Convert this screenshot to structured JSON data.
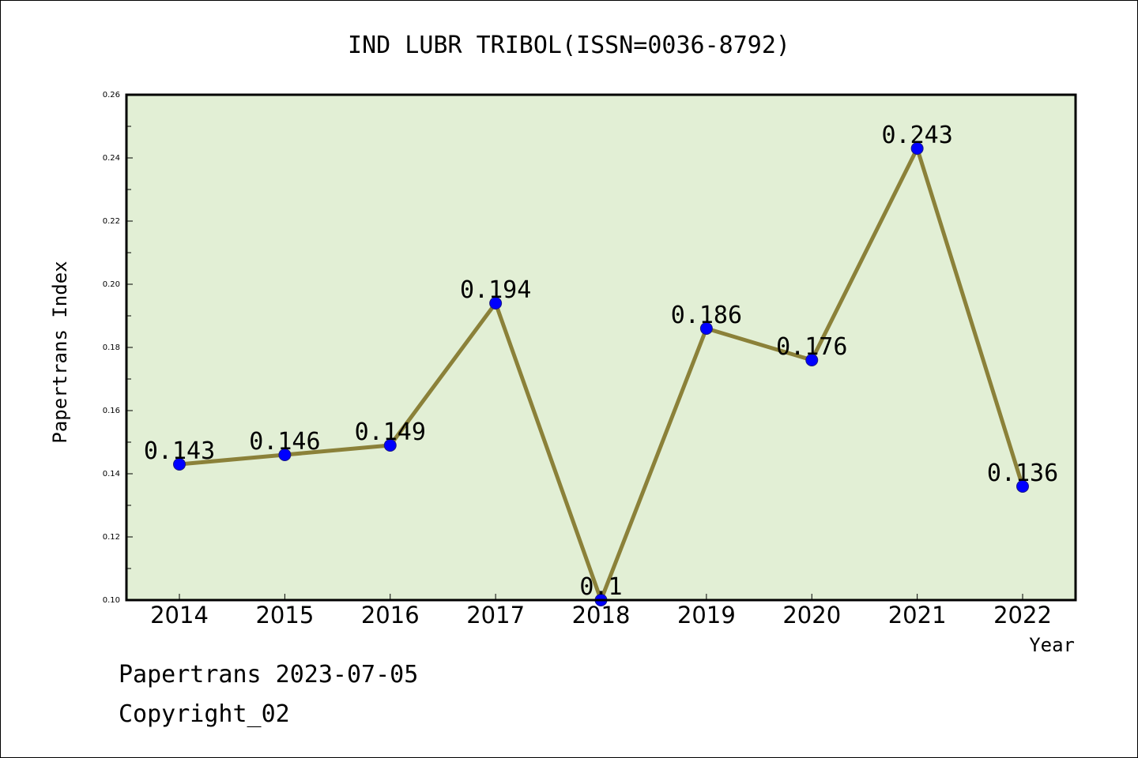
{
  "chart_data": {
    "type": "line",
    "title": "IND LUBR TRIBOL(ISSN=0036-8792)",
    "xlabel": "Year",
    "ylabel": "Papertrans Index",
    "x": [
      "2014",
      "2015",
      "2016",
      "2017",
      "2018",
      "2019",
      "2020",
      "2021",
      "2022"
    ],
    "series": [
      {
        "values": [
          0.143,
          0.146,
          0.149,
          0.194,
          0.1,
          0.186,
          0.176,
          0.243,
          0.136
        ],
        "labels": [
          "0.143",
          "0.146",
          "0.149",
          "0.194",
          "0.1",
          "0.186",
          "0.176",
          "0.243",
          "0.136"
        ]
      }
    ],
    "ylim": [
      0.1,
      0.26
    ],
    "yticks": [
      "0.10",
      "0.12",
      "0.14",
      "0.16",
      "0.18",
      "0.20",
      "0.22",
      "0.24",
      "0.26"
    ],
    "grid": false,
    "colors": {
      "plot_background": "#e2efd5",
      "line": "#8b8139",
      "marker": "#0000ff"
    }
  },
  "footer": {
    "line1": "Papertrans 2023-07-05",
    "line2": "Copyright_02"
  }
}
